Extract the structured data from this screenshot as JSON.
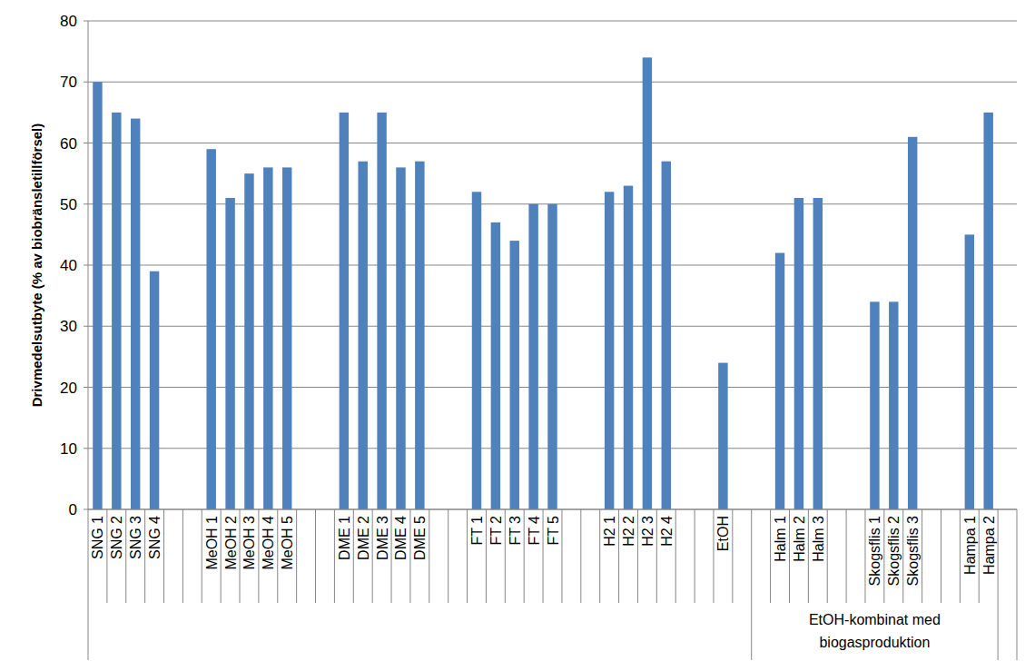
{
  "chart_data": {
    "type": "bar",
    "y_label": "Drivmedelsutbyte (% av biobränsletillförsel)",
    "categories": [
      "SNG 1",
      "SNG 2",
      "SNG 3",
      "SNG 4",
      null,
      null,
      "MeOH 1",
      "MeOH 2",
      "MeOH 3",
      "MeOH 4",
      "MeOH 5",
      null,
      null,
      "DME 1",
      "DME 2",
      "DME 3",
      "DME 4",
      "DME 5",
      null,
      null,
      "FT 1",
      "FT 2",
      "FT 3",
      "FT 4",
      "FT 5",
      null,
      null,
      "H2 1",
      "H2 2",
      "H2 3",
      "H2 4",
      null,
      null,
      "EtOH",
      null,
      null,
      "Halm 1",
      "Halm 2",
      "Halm 3",
      null,
      null,
      "Skogsflis 1",
      "Skogsflis 2",
      "Skogsflis 3",
      null,
      null,
      "Hampa 1",
      "Hampa 2",
      null
    ],
    "values": [
      70,
      65,
      64,
      39,
      null,
      null,
      59,
      51,
      55,
      56,
      56,
      null,
      null,
      65,
      57,
      65,
      56,
      57,
      null,
      null,
      52,
      47,
      44,
      50,
      50,
      null,
      null,
      52,
      53,
      74,
      57,
      null,
      null,
      24,
      null,
      null,
      42,
      51,
      51,
      null,
      null,
      34,
      34,
      61,
      null,
      null,
      45,
      65,
      null
    ],
    "category_groups": [
      {
        "label": "EtOH-kombinat med biogasproduktion",
        "from": 35,
        "to": 47
      }
    ],
    "color": "#4f81bd",
    "ylim": [
      0,
      80
    ],
    "yticks": [
      0,
      10,
      20,
      30,
      40,
      50,
      60,
      70,
      80
    ],
    "grid": true
  }
}
